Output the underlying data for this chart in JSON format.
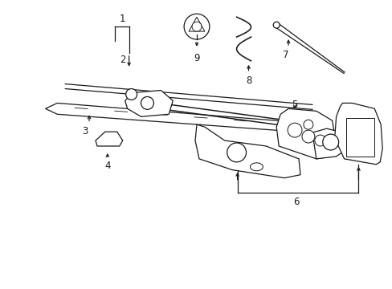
{
  "bg_color": "#ffffff",
  "line_color": "#1a1a1a",
  "figsize": [
    4.89,
    3.6
  ],
  "dpi": 100,
  "lw": 0.9
}
